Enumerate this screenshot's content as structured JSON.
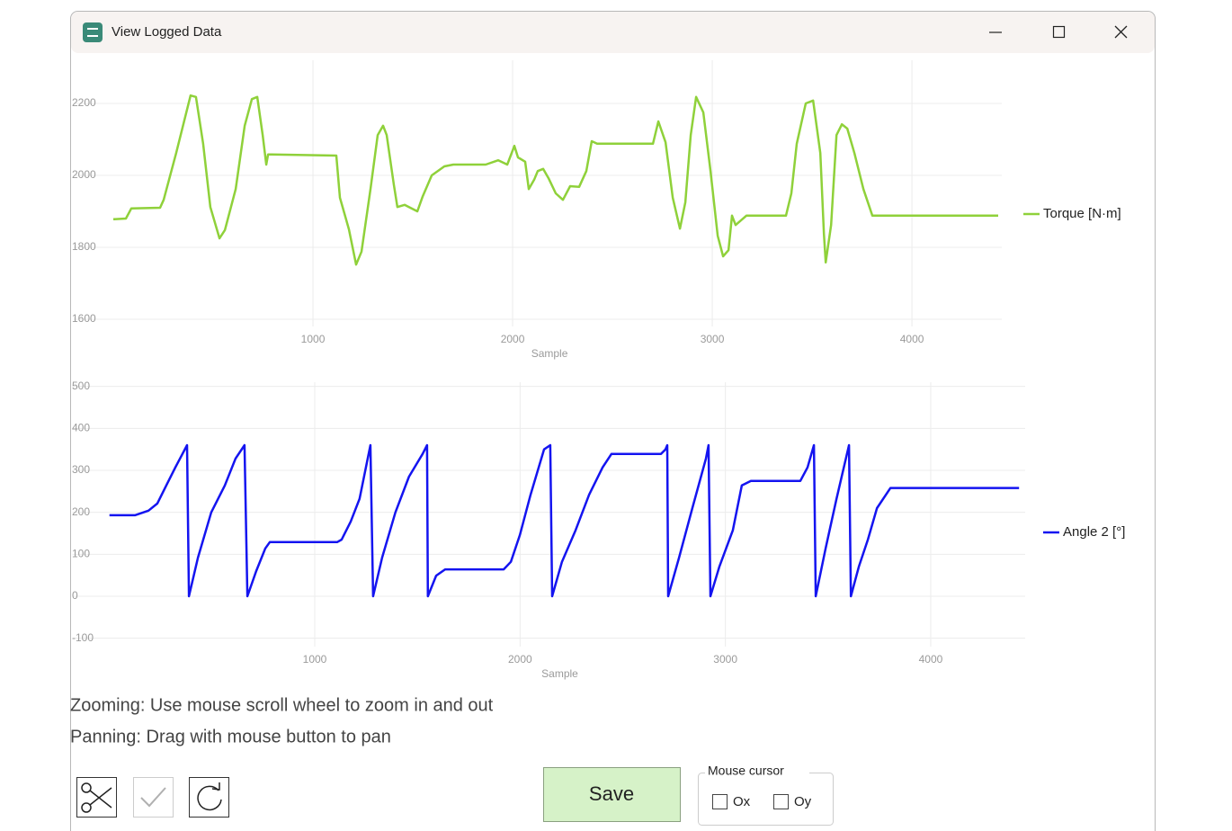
{
  "window": {
    "title": "View Logged Data"
  },
  "chart_data": [
    {
      "type": "line",
      "x_label": "Sample",
      "x": [
        0,
        63,
        90,
        234,
        252,
        315,
        360,
        387,
        414,
        450,
        486,
        532,
        559,
        613,
        658,
        694,
        721,
        748,
        766,
        775,
        793,
        1117,
        1135,
        1180,
        1216,
        1243,
        1288,
        1324,
        1351,
        1369,
        1405,
        1423,
        1459,
        1523,
        1550,
        1595,
        1658,
        1703,
        1865,
        1928,
        1973,
        2009,
        2027,
        2063,
        2081,
        2108,
        2126,
        2153,
        2180,
        2216,
        2252,
        2288,
        2333,
        2369,
        2396,
        2423,
        2703,
        2730,
        2766,
        2802,
        2838,
        2865,
        2892,
        2919,
        2955,
        2991,
        3027,
        3054,
        3081,
        3099,
        3117,
        3171,
        3369,
        3396,
        3423,
        3468,
        3505,
        3541,
        3559,
        3568,
        3595,
        3622,
        3649,
        3676,
        3712,
        3757,
        3802,
        4432
      ],
      "series": [
        {
          "name": "Torque [N·m]",
          "color": "#8fd13a",
          "values": [
            1878,
            1880,
            1908,
            1910,
            1932,
            2062,
            2162,
            2222,
            2218,
            2088,
            1912,
            1825,
            1848,
            1962,
            2138,
            2212,
            2218,
            2112,
            2030,
            2058,
            2058,
            2055,
            1938,
            1850,
            1752,
            1788,
            1962,
            2112,
            2138,
            2112,
            1975,
            1912,
            1918,
            1900,
            1942,
            2000,
            2025,
            2030,
            2030,
            2042,
            2030,
            2082,
            2050,
            2038,
            1962,
            1988,
            2012,
            2018,
            1992,
            1950,
            1932,
            1970,
            1968,
            2012,
            2095,
            2088,
            2088,
            2150,
            2092,
            1938,
            1852,
            1925,
            2112,
            2218,
            2175,
            2012,
            1832,
            1775,
            1792,
            1888,
            1862,
            1888,
            1888,
            1950,
            2088,
            2200,
            2208,
            2062,
            1838,
            1758,
            1862,
            2112,
            2142,
            2130,
            2062,
            1962,
            1888,
            1888
          ]
        }
      ],
      "xlim": [
        -200,
        4450
      ],
      "xticks": [
        1000,
        2000,
        3000,
        4000
      ],
      "ylim": [
        1580,
        2320
      ],
      "yticks": [
        1600,
        1800,
        2000,
        2200
      ],
      "grid": true,
      "legend": "right"
    },
    {
      "type": "line",
      "x_label": "Sample",
      "x": [
        0,
        124,
        190,
        233,
        277,
        321,
        378,
        387,
        431,
        496,
        562,
        614,
        658,
        672,
        715,
        759,
        781,
        1109,
        1131,
        1175,
        1218,
        1271,
        1284,
        1328,
        1393,
        1459,
        1525,
        1547,
        1551,
        1591,
        1635,
        1920,
        1955,
        1999,
        2051,
        2117,
        2147,
        2156,
        2204,
        2270,
        2336,
        2402,
        2445,
        2686,
        2708,
        2717,
        2721,
        2774,
        2839,
        2905,
        2918,
        2927,
        2971,
        3036,
        3080,
        3124,
        3365,
        3400,
        3431,
        3440,
        3488,
        3541,
        3602,
        3611,
        3650,
        3694,
        3738,
        3804,
        4430
      ],
      "series": [
        {
          "name": "Angle 2 [°]",
          "color": "#1414f0",
          "values": [
            193,
            193,
            204,
            221,
            264,
            307,
            360,
            0,
            92,
            200,
            264,
            328,
            360,
            0,
            60,
            114,
            129,
            129,
            135,
            178,
            232,
            360,
            0,
            92,
            200,
            285,
            339,
            360,
            0,
            49,
            64,
            64,
            82,
            146,
            242,
            350,
            360,
            0,
            82,
            157,
            242,
            307,
            339,
            339,
            350,
            360,
            0,
            92,
            210,
            328,
            360,
            0,
            71,
            157,
            264,
            275,
            275,
            307,
            360,
            0,
            114,
            232,
            360,
            0,
            71,
            135,
            210,
            258,
            258
          ]
        }
      ],
      "xlim": [
        -180,
        4460
      ],
      "xticks": [
        1000,
        2000,
        3000,
        4000
      ],
      "ylim": [
        -120,
        510
      ],
      "yticks": [
        -100,
        0,
        100,
        200,
        300,
        400,
        500
      ],
      "grid": true,
      "legend": "right"
    }
  ],
  "instructions": [
    "Zooming: Use mouse scroll wheel to zoom in and out",
    "Panning: Drag with mouse button to pan"
  ],
  "save_button": "Save",
  "mouse_cursor": {
    "title": "Mouse cursor",
    "options": [
      "Ox",
      "Oy"
    ]
  }
}
